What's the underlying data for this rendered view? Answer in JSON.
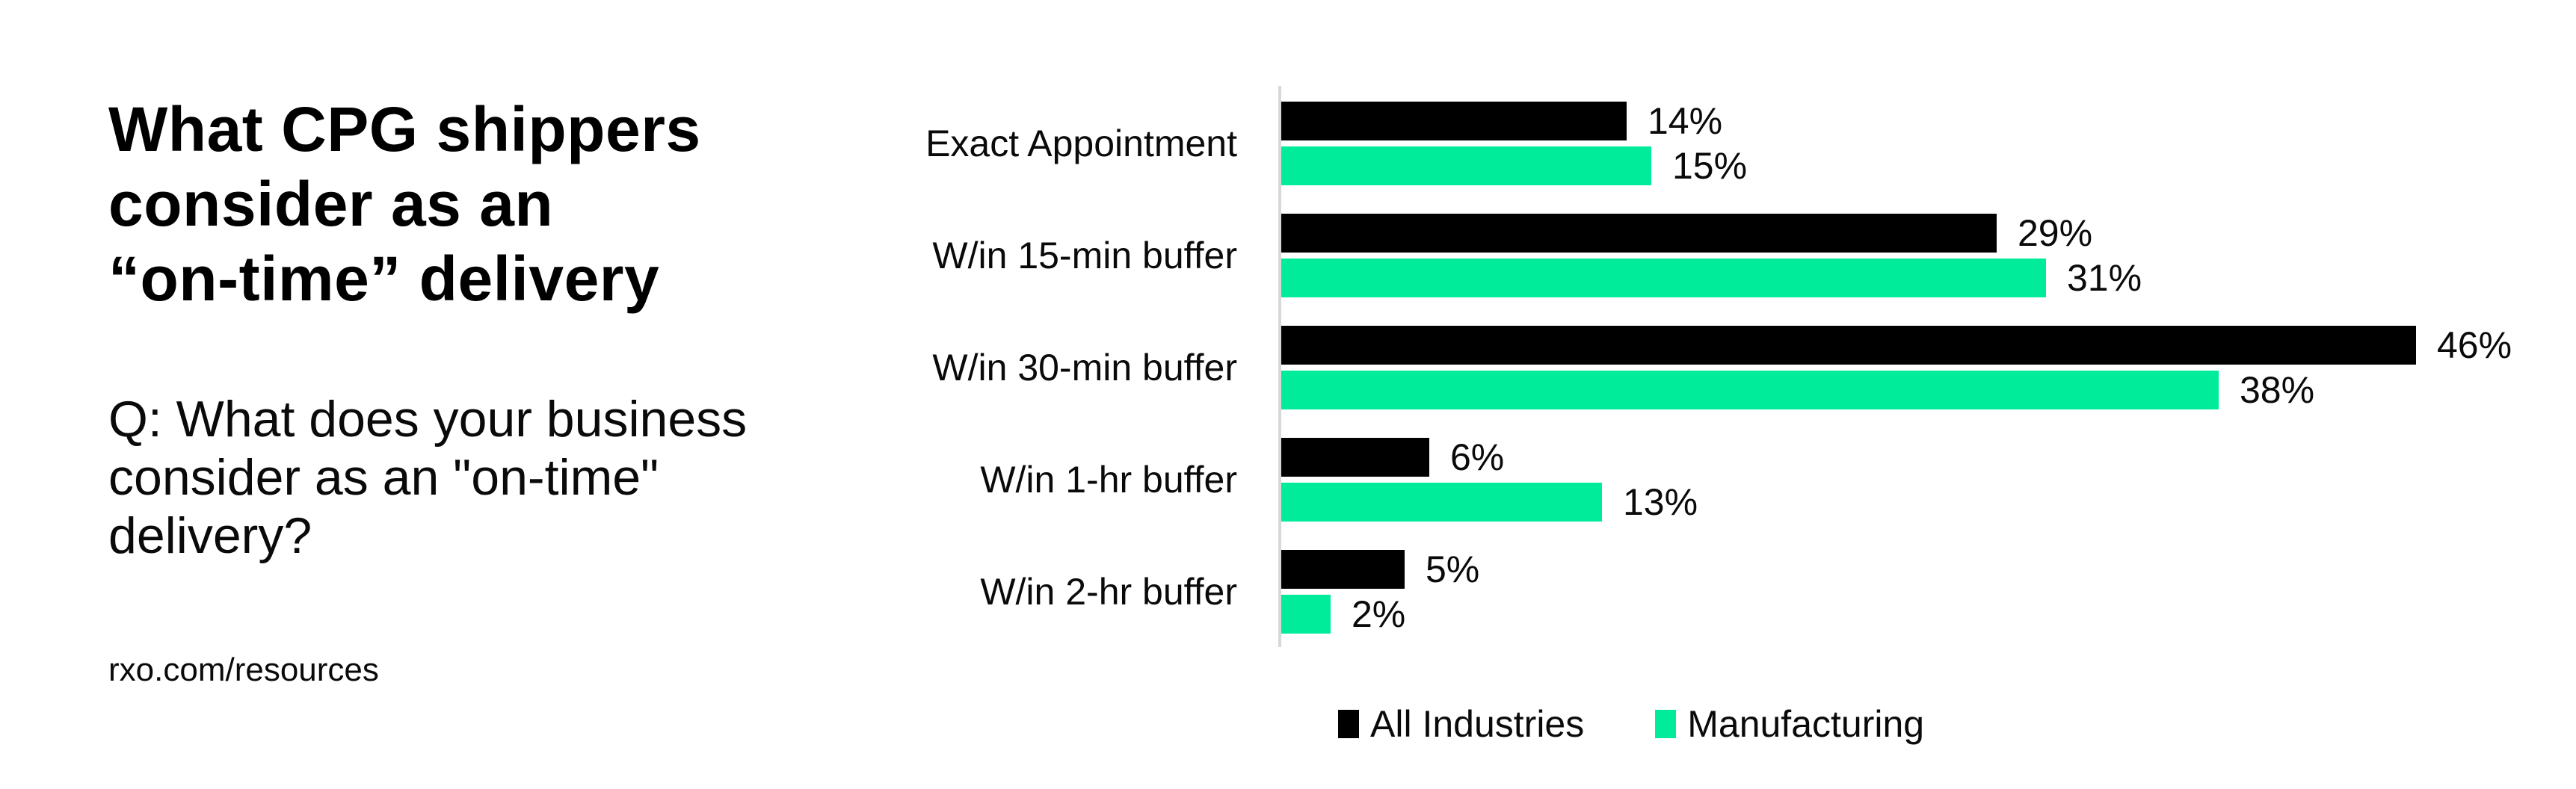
{
  "page": {
    "background": "#ffffff"
  },
  "left_panel": {
    "title": "What CPG shippers\nconsider as an\n“on-time” delivery",
    "question": "Q: What does your business\nconsider as an \"on-time\"\ndelivery?",
    "source": "rxo.com/resources"
  },
  "chart_data": {
    "type": "bar",
    "orientation": "horizontal",
    "title": "What CPG shippers consider as an “on-time” delivery",
    "categories": [
      "Exact Appointment",
      "W/in 15-min buffer",
      "W/in 30-min buffer",
      "W/in 1-hr buffer",
      "W/in 2-hr buffer"
    ],
    "series": [
      {
        "name": "All Industries",
        "color": "#000000",
        "values": [
          14,
          29,
          46,
          6,
          5
        ]
      },
      {
        "name": "Manufacturing",
        "color": "#00EC9B",
        "values": [
          15,
          31,
          38,
          13,
          2
        ]
      }
    ],
    "value_suffix": "%",
    "xlim": [
      0,
      50
    ],
    "grid": false,
    "axis_line_color": "#D8D8D8",
    "legend_position": "bottom"
  }
}
